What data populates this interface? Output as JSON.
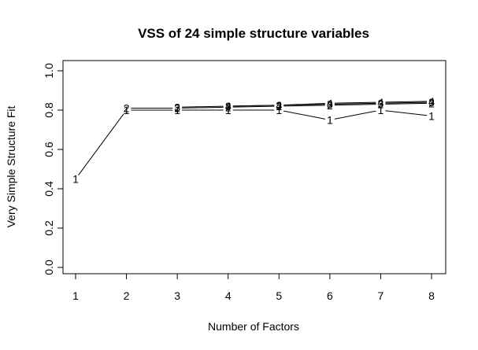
{
  "chart_data": {
    "type": "line",
    "title": "VSS of 24 simple structure variables",
    "xlabel": "Number of Factors",
    "ylabel": "Very Simple Structure Fit",
    "xlim": [
      1,
      8
    ],
    "ylim": [
      0.0,
      1.0
    ],
    "x_ticks": [
      "1",
      "2",
      "3",
      "4",
      "5",
      "6",
      "7",
      "8"
    ],
    "y_ticks": [
      "0.0",
      "0.2",
      "0.4",
      "0.6",
      "0.8",
      "1.0"
    ],
    "grid": false,
    "legend": "none",
    "x": [
      1,
      2,
      3,
      4,
      5,
      6,
      7,
      8
    ],
    "series": [
      {
        "marker": "1",
        "values": [
          0.45,
          0.8,
          0.8,
          0.8,
          0.8,
          0.75,
          0.8,
          0.77
        ]
      },
      {
        "marker": "2",
        "values": [
          null,
          0.81,
          0.81,
          0.815,
          0.82,
          0.825,
          0.83,
          0.835
        ]
      },
      {
        "marker": "3",
        "values": [
          null,
          null,
          0.815,
          0.82,
          0.825,
          0.83,
          0.835,
          0.84
        ]
      },
      {
        "marker": "4",
        "values": [
          null,
          null,
          null,
          0.82,
          0.825,
          0.835,
          0.84,
          0.845
        ]
      }
    ]
  }
}
